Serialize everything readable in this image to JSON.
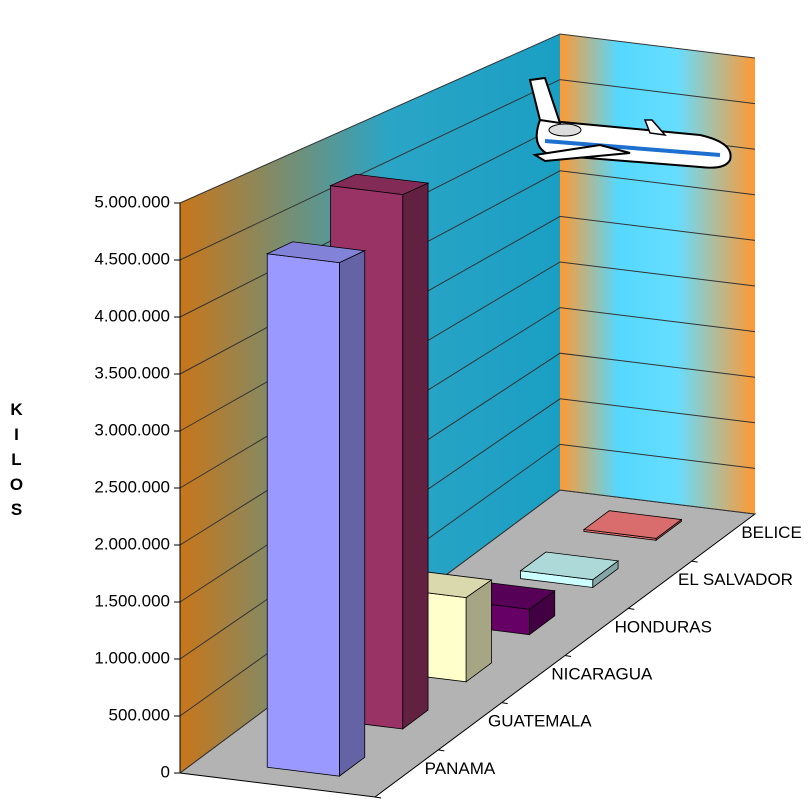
{
  "chart_data": {
    "type": "bar3d",
    "y_label": "KILOS",
    "categories": [
      "PANAMA",
      "GUATEMALA",
      "NICARAGUA",
      "HONDURAS",
      "EL SALVADOR",
      "BELICE"
    ],
    "values": [
      4550000,
      4900000,
      800000,
      250000,
      80000,
      20000
    ],
    "colors": [
      "#9999ff",
      "#993366",
      "#ffffcc",
      "#660066",
      "#ccffff",
      "#ff8080"
    ],
    "ylim": [
      0,
      5000000
    ],
    "yticks": [
      0,
      {
        "value": 500000,
        "label": "500.000"
      },
      {
        "value": 1000000,
        "label": "1.000.000"
      },
      {
        "value": 1500000,
        "label": "1.500.000"
      },
      {
        "value": 2000000,
        "label": "2.000.000"
      },
      {
        "value": 2500000,
        "label": "2.500.000"
      },
      {
        "value": 3000000,
        "label": "3.000.000"
      },
      {
        "value": 3500000,
        "label": "3.500.000"
      },
      {
        "value": 4000000,
        "label": "4.000.000"
      },
      {
        "value": 4500000,
        "label": "4.500.000"
      },
      {
        "value": 5000000,
        "label": "5.000.000"
      }
    ],
    "grid": true
  }
}
